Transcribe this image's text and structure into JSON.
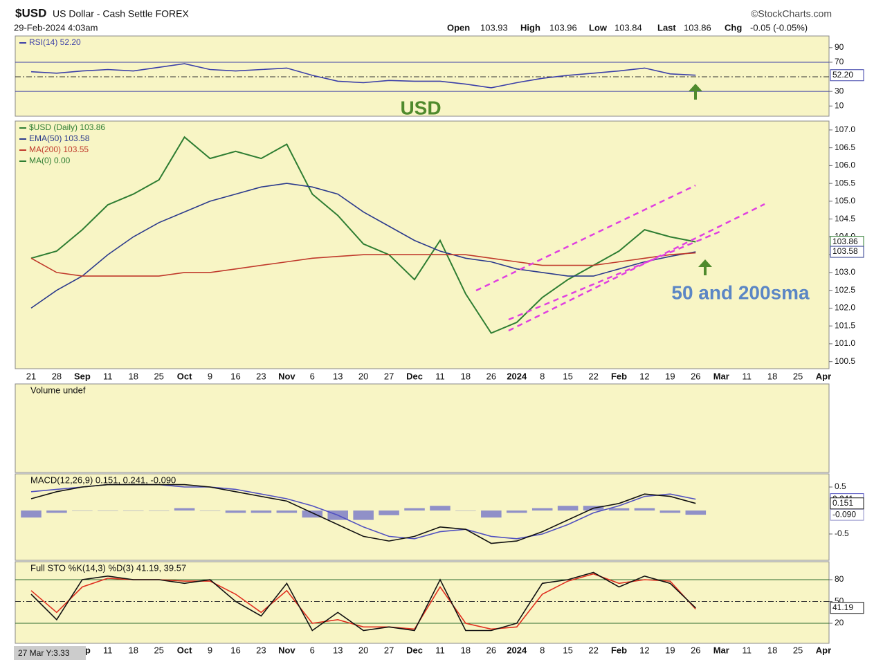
{
  "header": {
    "symbol": "$USD",
    "name": "US Dollar - Cash Settle FOREX",
    "date": "29-Feb-2024 4:03am",
    "source": "©StockCharts.com",
    "open_label": "Open",
    "open": "103.93",
    "high_label": "High",
    "high": "103.96",
    "low_label": "Low",
    "low": "103.84",
    "last_label": "Last",
    "last": "103.86",
    "chg_label": "Chg",
    "chg": "-0.05 (-0.05%)",
    "annotation_usd": "USD",
    "annotation_sma": "50 and 200sma",
    "corner_note": "27 Mar Y:3.33"
  },
  "chart_data": [
    {
      "type": "line",
      "ylim": [
        -4,
        106
      ],
      "yticks": [
        90,
        70,
        30,
        10
      ],
      "levels": [
        70,
        30
      ],
      "dashed_levels": [
        50
      ],
      "series": [
        {
          "name": "RSI(14) 52.20",
          "color": "#3b3fa8",
          "tag": "52.20",
          "values": [
            57,
            55,
            58,
            60,
            58,
            63,
            68,
            60,
            58,
            60,
            62,
            52,
            44,
            42,
            45,
            44,
            44,
            40,
            35,
            42,
            48,
            52,
            55,
            58,
            62,
            54,
            52.2,
            null,
            null,
            null,
            null,
            null
          ]
        }
      ]
    },
    {
      "type": "line",
      "ylim": [
        100.3,
        107.25
      ],
      "yticks": [
        {
          "value": 100.5,
          "label": "100.5"
        },
        {
          "value": 101,
          "label": "101.0"
        },
        {
          "value": 101.5,
          "label": "101.5"
        },
        {
          "value": 102,
          "label": "102.0"
        },
        {
          "value": 102.5,
          "label": "102.5"
        },
        {
          "value": 103,
          "label": "103.0"
        },
        {
          "value": 103.5,
          "label": "103.5"
        },
        {
          "value": 104,
          "label": "104.0"
        },
        {
          "value": 104.5,
          "label": "104.5"
        },
        {
          "value": 105,
          "label": "105.0"
        },
        {
          "value": 105.5,
          "label": "105.5"
        },
        {
          "value": 106,
          "label": "106.0"
        },
        {
          "value": 106.5,
          "label": "106.5"
        },
        {
          "value": 107,
          "label": "107.0"
        }
      ],
      "categories": [
        "21",
        "28",
        "Sep",
        "11",
        "18",
        "25",
        "Oct",
        "9",
        "16",
        "23",
        "Nov",
        "6",
        "13",
        "20",
        "27",
        "Dec",
        "11",
        "18",
        "26",
        "2024",
        "8",
        "15",
        "22",
        "Feb",
        "12",
        "19",
        "26",
        "Mar",
        "11",
        "18",
        "25",
        "Apr"
      ],
      "series": [
        {
          "name": "$USD (Daily) 103.86",
          "color": "#2e7d32",
          "tag": "103.86",
          "values": [
            103.4,
            103.6,
            104.2,
            104.9,
            105.2,
            105.6,
            106.8,
            106.2,
            106.4,
            106.2,
            106.6,
            105.2,
            104.6,
            103.8,
            103.5,
            102.8,
            103.9,
            102.4,
            101.3,
            101.6,
            102.3,
            102.8,
            103.2,
            103.6,
            104.2,
            104.0,
            103.86,
            null,
            null,
            null,
            null,
            null
          ]
        },
        {
          "name": "EMA(50) 103.58",
          "color": "#2b3a8c",
          "tag": "103.58",
          "values": [
            102.0,
            102.5,
            102.9,
            103.5,
            104.0,
            104.4,
            104.7,
            105.0,
            105.2,
            105.4,
            105.5,
            105.4,
            105.2,
            104.7,
            104.3,
            103.9,
            103.6,
            103.4,
            103.3,
            103.1,
            103.0,
            102.9,
            102.9,
            103.1,
            103.3,
            103.45,
            103.58,
            null,
            null,
            null,
            null,
            null
          ]
        },
        {
          "name": "MA(200) 103.55",
          "color": "#c0392b",
          "values": [
            103.4,
            103.0,
            102.9,
            102.9,
            102.9,
            102.9,
            103.0,
            103.0,
            103.1,
            103.2,
            103.3,
            103.4,
            103.45,
            103.5,
            103.5,
            103.5,
            103.5,
            103.5,
            103.4,
            103.3,
            103.2,
            103.2,
            103.2,
            103.3,
            103.4,
            103.5,
            103.55,
            null,
            null,
            null,
            null,
            null
          ]
        }
      ],
      "legend_only": [
        {
          "name": "MA(0) 0.00",
          "color": "#2e7d32"
        }
      ]
    },
    {
      "type": "bar",
      "title": "Volume undef"
    },
    {
      "type": "line",
      "title": "MACD(12,26,9) 0.151, 0.241, -0.090",
      "ylim": [
        -1.06,
        0.78
      ],
      "yticks": [
        0.5,
        -0.5
      ],
      "series": [
        {
          "color": "#9090c8",
          "kind": "bar",
          "tag": "-0.090",
          "values": [
            -0.15,
            -0.05,
            0,
            0,
            0,
            0,
            0.05,
            0,
            -0.05,
            -0.05,
            -0.05,
            -0.15,
            -0.2,
            -0.2,
            -0.1,
            0.05,
            0.1,
            0,
            -0.15,
            -0.05,
            0.05,
            0.1,
            0.1,
            0.05,
            0.05,
            -0.05,
            -0.09,
            null,
            null,
            null,
            null,
            null
          ]
        },
        {
          "color": "#5050c0",
          "tag": "0.241",
          "values": [
            0.4,
            0.45,
            0.5,
            0.55,
            0.55,
            0.55,
            0.5,
            0.5,
            0.45,
            0.35,
            0.25,
            0.1,
            -0.1,
            -0.35,
            -0.55,
            -0.6,
            -0.45,
            -0.4,
            -0.55,
            -0.6,
            -0.5,
            -0.3,
            -0.05,
            0.1,
            0.3,
            0.35,
            0.241,
            null,
            null,
            null,
            null,
            null
          ]
        },
        {
          "color": "#111111",
          "tag": "0.151",
          "values": [
            0.25,
            0.4,
            0.5,
            0.55,
            0.55,
            0.55,
            0.55,
            0.5,
            0.4,
            0.3,
            0.2,
            -0.05,
            -0.3,
            -0.55,
            -0.65,
            -0.55,
            -0.35,
            -0.4,
            -0.7,
            -0.65,
            -0.45,
            -0.2,
            0.05,
            0.15,
            0.35,
            0.3,
            0.151,
            null,
            null,
            null,
            null,
            null
          ]
        }
      ]
    },
    {
      "type": "line",
      "title": "Full STO %K(14,3) %D(3) 41.19, 39.57",
      "ylim": [
        -7.6,
        104.8
      ],
      "yticks": [
        80,
        50,
        20
      ],
      "levels": [
        80,
        20
      ],
      "dashed_levels": [
        50
      ],
      "categories": [
        "21",
        "28",
        "Sep",
        "11",
        "18",
        "25",
        "Oct",
        "9",
        "16",
        "23",
        "Nov",
        "6",
        "13",
        "20",
        "27",
        "Dec",
        "11",
        "18",
        "26",
        "2024",
        "8",
        "15",
        "22",
        "Feb",
        "12",
        "19",
        "26",
        "Mar",
        "11",
        "18",
        "25",
        "Apr"
      ],
      "series": [
        {
          "color": "#e03020",
          "values": [
            65,
            35,
            70,
            82,
            80,
            80,
            78,
            78,
            60,
            35,
            65,
            20,
            25,
            15,
            15,
            12,
            70,
            20,
            12,
            15,
            60,
            78,
            88,
            75,
            80,
            78,
            39.57,
            null,
            null,
            null,
            null,
            null
          ]
        },
        {
          "color": "#111111",
          "tag": "41.19",
          "values": [
            60,
            25,
            80,
            85,
            80,
            80,
            75,
            80,
            50,
            30,
            75,
            10,
            35,
            10,
            15,
            10,
            80,
            10,
            10,
            20,
            75,
            80,
            90,
            70,
            85,
            75,
            41.19,
            null,
            null,
            null,
            null,
            null
          ]
        }
      ]
    }
  ]
}
